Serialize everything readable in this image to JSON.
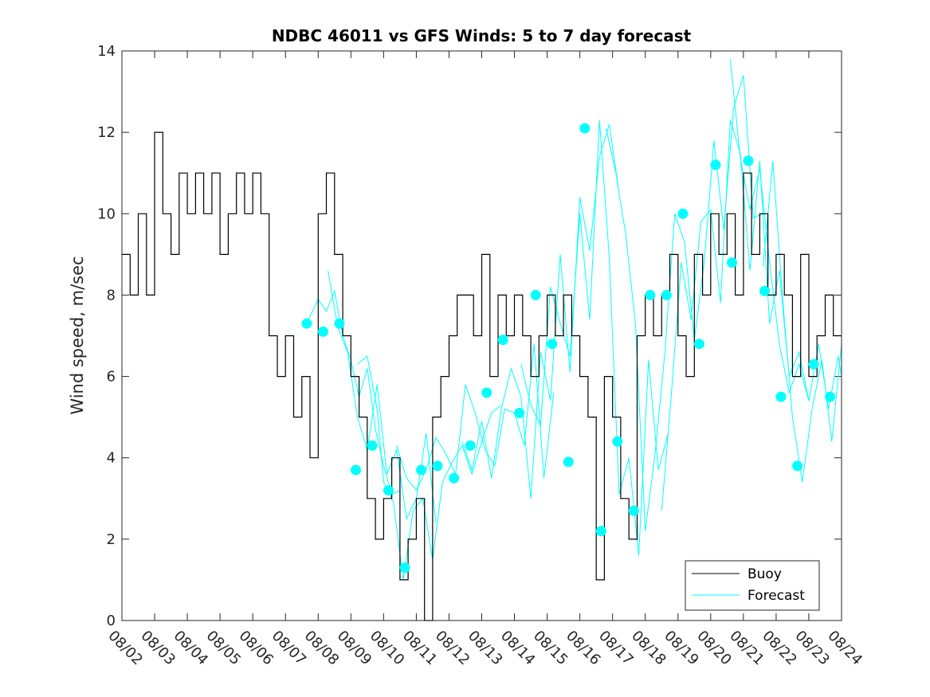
{
  "chart_data": {
    "type": "line",
    "title": "NDBC 46011 vs GFS Winds: 5 to 7 day forecast",
    "xlabel": "",
    "ylabel": "Wind speed, m/sec",
    "xlim_days": [
      0,
      22
    ],
    "ylim": [
      0,
      14
    ],
    "y_ticks": [
      0,
      2,
      4,
      6,
      8,
      10,
      12,
      14
    ],
    "x_tick_labels": [
      "08/02",
      "08/03",
      "08/04",
      "08/05",
      "08/06",
      "08/07",
      "08/08",
      "08/09",
      "08/10",
      "08/11",
      "08/12",
      "08/13",
      "08/14",
      "08/15",
      "08/16",
      "08/17",
      "08/18",
      "08/19",
      "08/20",
      "08/21",
      "08/22",
      "08/23",
      "08/24"
    ],
    "legend": {
      "position": "bottom-right",
      "entries": [
        "Buoy",
        "Forecast"
      ]
    },
    "colors": {
      "buoy": "#000000",
      "forecast": "#00ffff",
      "axis": "#262626"
    },
    "series": [
      {
        "name": "Buoy",
        "color": "#000000",
        "x": [
          0.0,
          0.25,
          0.5,
          0.75,
          1.0,
          1.25,
          1.5,
          1.75,
          2.0,
          2.25,
          2.5,
          2.75,
          3.0,
          3.25,
          3.5,
          3.75,
          4.0,
          4.25,
          4.5,
          4.75,
          5.0,
          5.25,
          5.5,
          5.75,
          6.0,
          6.25,
          6.5,
          6.75,
          7.0,
          7.25,
          7.5,
          7.75,
          8.0,
          8.25,
          8.5,
          8.75,
          9.0,
          9.25,
          9.5,
          9.75,
          10.0,
          10.25,
          10.5,
          10.75,
          11.0,
          11.25,
          11.5,
          11.75,
          12.0,
          12.25,
          12.5,
          12.75,
          13.0,
          13.25,
          13.5,
          13.75,
          14.0,
          14.25,
          14.5,
          14.75,
          15.0,
          15.25,
          15.5,
          15.75,
          16.0,
          16.25,
          16.5,
          16.75,
          17.0,
          17.25,
          17.5,
          17.75,
          18.0,
          18.25,
          18.5,
          18.75,
          19.0,
          19.25,
          19.5,
          19.75,
          20.0,
          20.25,
          20.5,
          20.75,
          21.0,
          21.25,
          21.5,
          21.75,
          22.0
        ],
        "values": [
          9,
          8,
          10,
          8,
          12,
          10,
          9,
          11,
          10,
          11,
          10,
          11,
          9,
          10,
          11,
          10,
          11,
          10,
          7,
          6,
          7,
          5,
          6,
          4,
          10,
          11,
          9,
          7,
          6,
          5,
          3,
          2,
          3,
          4,
          1,
          2,
          3,
          0,
          5,
          6,
          7,
          8,
          8,
          7,
          9,
          6,
          8,
          7,
          8,
          7,
          6,
          7,
          8,
          7,
          8,
          7,
          6,
          5,
          1,
          6,
          5,
          3,
          2,
          7,
          8,
          7,
          8,
          9,
          7,
          6,
          9,
          8,
          10,
          9,
          10,
          8,
          11,
          9,
          10,
          8,
          9,
          8,
          6,
          9,
          6,
          7,
          8,
          7,
          7
        ]
      },
      {
        "name": "Forecast",
        "color": "#00ffff",
        "traces": [
          {
            "x": [
              5.65,
              6.0,
              6.25,
              6.5,
              6.75,
              7.0,
              7.25,
              7.5,
              7.75,
              8.0,
              8.25,
              8.5
            ],
            "values": [
              7.3,
              7.9,
              7.6,
              8.1,
              7.0,
              6.4,
              5.5,
              6.2,
              4.7,
              3.8,
              3.1,
              3.2
            ]
          },
          {
            "x": [
              6.3,
              6.6,
              6.9,
              7.2,
              7.5,
              7.8,
              8.1,
              8.4,
              8.7,
              9.0,
              9.3,
              9.6
            ],
            "values": [
              8.6,
              7.2,
              6.6,
              5.0,
              4.2,
              5.8,
              3.6,
              4.2,
              2.5,
              3.0,
              4.6,
              2.4
            ]
          },
          {
            "x": [
              7.2,
              7.5,
              7.8,
              8.0,
              8.3,
              8.6,
              8.9,
              9.2,
              9.5,
              9.8,
              10.1,
              10.4,
              10.7,
              11.0,
              11.3,
              11.6
            ],
            "values": [
              6.3,
              6.5,
              5.2,
              3.4,
              2.9,
              1.0,
              2.7,
              3.0,
              1.5,
              3.4,
              3.9,
              4.3,
              3.6,
              4.4,
              5.1,
              5.3
            ]
          },
          {
            "x": [
              8.4,
              8.7,
              9.0,
              9.3,
              9.6,
              9.9,
              10.2,
              10.5,
              10.8,
              11.1,
              11.4,
              11.7,
              12.0,
              12.3,
              12.6,
              12.9,
              13.2
            ],
            "values": [
              4.3,
              3.5,
              3.2,
              3.7,
              4.5,
              4.1,
              3.6,
              5.8,
              5.1,
              4.2,
              3.8,
              5.2,
              5.1,
              4.3,
              6.8,
              3.5,
              5.6
            ]
          },
          {
            "x": [
              10.4,
              10.7,
              11.0,
              11.3,
              11.6,
              11.9,
              12.2,
              12.5,
              12.8,
              13.1,
              13.4,
              13.7,
              14.0,
              14.3,
              14.6,
              14.9,
              15.2
            ],
            "values": [
              4.4,
              3.7,
              4.9,
              3.5,
              5.2,
              6.2,
              5.5,
              3.0,
              6.6,
              5.4,
              9.0,
              6.1,
              10.4,
              9.1,
              11.4,
              12.2,
              10.5
            ]
          },
          {
            "x": [
              12.2,
              12.5,
              12.8,
              13.1,
              13.4,
              13.7,
              14.0,
              14.3,
              14.6,
              14.9,
              15.2,
              15.5,
              15.8,
              16.1,
              16.4,
              16.7
            ],
            "values": [
              6.3,
              5.3,
              4.8,
              8.2,
              7.3,
              6.5,
              10.0,
              7.4,
              12.3,
              8.9,
              3.1,
              4.0,
              1.6,
              6.4,
              3.7,
              4.6
            ]
          },
          {
            "x": [
              14.8,
              15.1,
              15.4,
              15.7,
              16.0,
              16.3,
              16.6,
              16.9,
              17.2,
              17.5,
              17.8,
              18.1,
              18.4,
              18.7,
              19.0,
              19.3,
              19.6
            ],
            "values": [
              12.1,
              11.0,
              9.5,
              7.3,
              2.2,
              4.1,
              6.6,
              10.0,
              9.3,
              6.9,
              8.8,
              11.8,
              9.6,
              12.6,
              13.4,
              9.9,
              10.0
            ]
          },
          {
            "x": [
              16.5,
              16.8,
              17.1,
              17.4,
              17.7,
              18.0,
              18.3,
              18.6,
              18.9,
              19.2,
              19.5,
              19.8,
              20.1,
              20.4,
              20.7,
              21.0
            ],
            "values": [
              2.7,
              5.6,
              8.8,
              7.4,
              9.8,
              10.1,
              7.8,
              12.3,
              11.5,
              8.6,
              11.3,
              7.3,
              8.6,
              6.0,
              6.6,
              5.4
            ]
          },
          {
            "x": [
              18.6,
              18.9,
              19.2,
              19.5,
              19.8,
              20.1,
              20.4,
              20.7,
              21.0,
              21.3,
              21.6,
              21.9,
              22.0
            ],
            "values": [
              13.8,
              11.4,
              10.1,
              11.1,
              8.8,
              6.8,
              5.6,
              6.3,
              5.4,
              6.8,
              5.2,
              6.5,
              6.0
            ]
          },
          {
            "x": [
              19.6,
              19.9,
              20.2,
              20.5,
              20.8,
              21.1,
              21.4,
              21.7,
              22.0
            ],
            "values": [
              8.7,
              11.3,
              7.9,
              5.0,
              3.4,
              5.2,
              6.4,
              4.4,
              6.8
            ]
          }
        ],
        "markers_x": [
          5.65,
          6.15,
          6.65,
          7.15,
          7.65,
          8.15,
          8.65,
          9.15,
          9.65,
          10.15,
          10.65,
          11.15,
          11.65,
          12.15,
          12.65,
          13.15,
          13.65,
          14.15,
          14.65,
          15.15,
          15.65,
          16.15,
          16.65,
          17.15,
          17.65,
          18.15,
          18.65,
          19.15,
          19.65,
          20.15,
          20.65,
          21.15,
          21.65
        ],
        "markers": [
          7.3,
          7.1,
          7.3,
          3.7,
          4.3,
          3.2,
          1.3,
          3.7,
          3.8,
          3.5,
          4.3,
          5.6,
          6.9,
          5.1,
          8.0,
          6.8,
          3.9,
          12.1,
          2.2,
          4.4,
          2.7,
          8.0,
          8.0,
          10.0,
          6.8,
          11.2,
          8.8,
          11.3,
          8.1,
          5.5,
          3.8,
          6.3,
          5.5
        ]
      }
    ]
  }
}
